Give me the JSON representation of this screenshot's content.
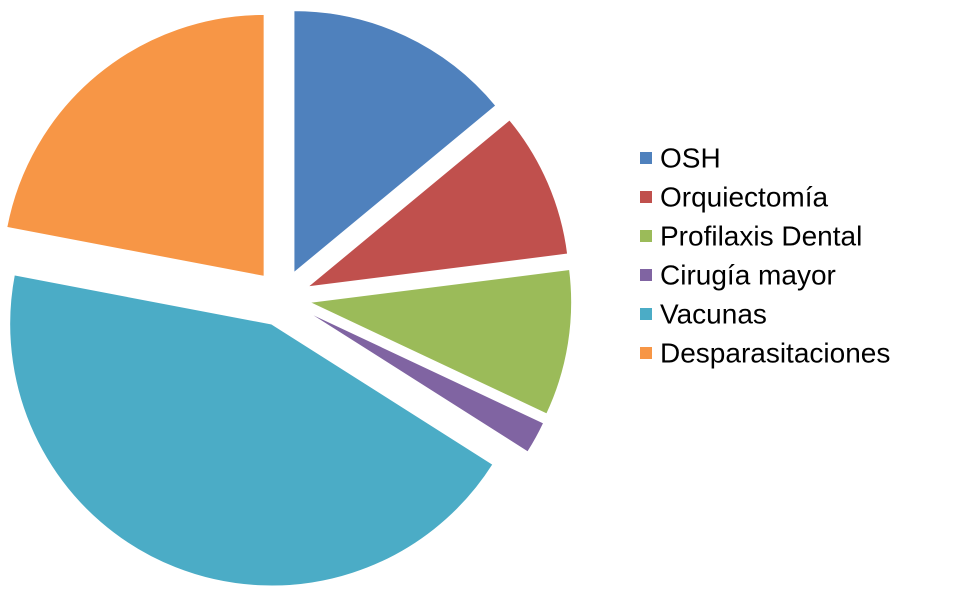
{
  "chart_data": {
    "type": "pie",
    "categories": [
      "OSH",
      "Orquiectomía",
      "Profilaxis Dental",
      "Cirugía mayor",
      "Vacunas",
      "Desparasitaciones"
    ],
    "values": [
      14,
      9,
      9,
      2,
      44,
      22
    ],
    "colors": [
      "#4f81bd",
      "#c0504d",
      "#9bbb59",
      "#8064a2",
      "#4bacc6",
      "#f79646"
    ],
    "legend": "right"
  }
}
